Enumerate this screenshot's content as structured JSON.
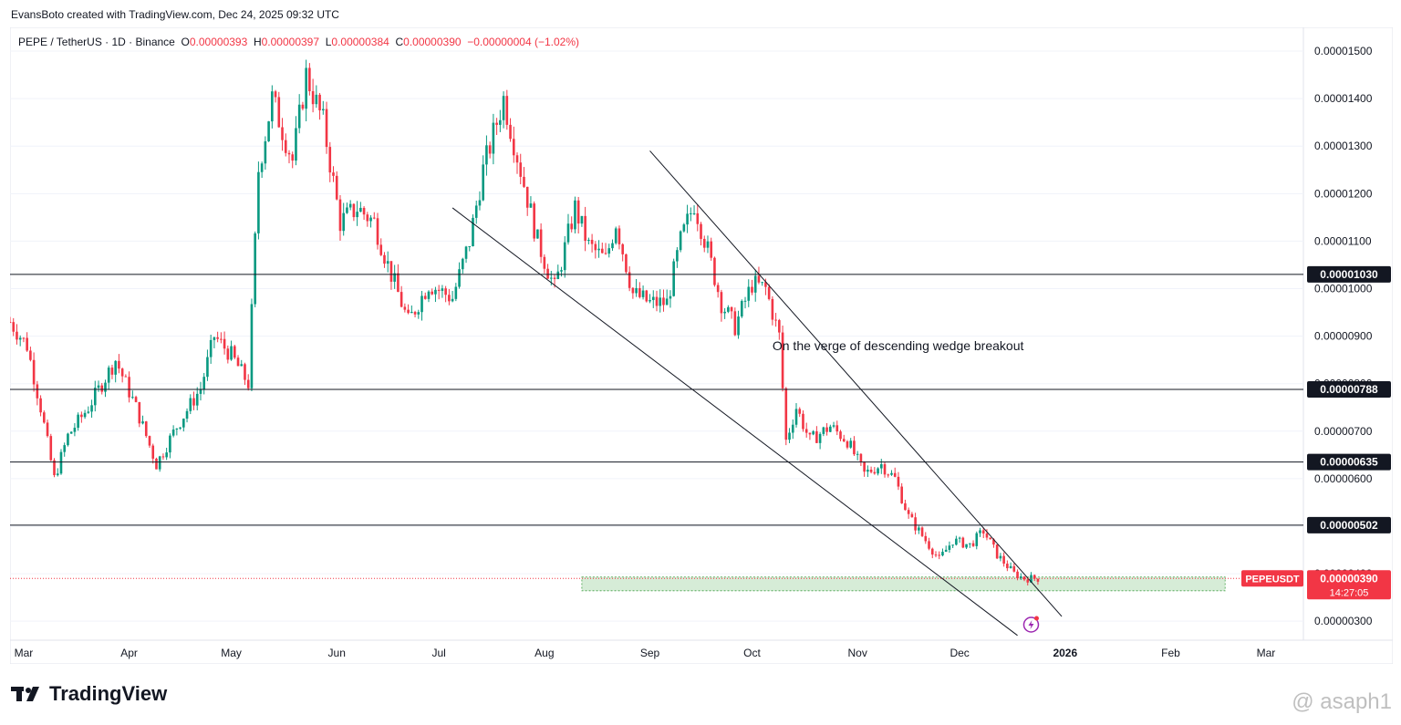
{
  "header": {
    "credit": "EvansBoto created with TradingView.com, Dec 24, 2025 09:32 UTC"
  },
  "legend": {
    "symbol": "PEPE / TetherUS · 1D · Binance",
    "o_label": "O",
    "o_value": "0.00000393",
    "h_label": "H",
    "h_value": "0.00000397",
    "l_label": "L",
    "l_value": "0.00000384",
    "c_label": "C",
    "c_value": "0.00000390",
    "change": "−0.00000004 (−1.02%)"
  },
  "footer": {
    "brand": "TradingView",
    "watermark": "@ asaph1"
  },
  "colors": {
    "up": "#089981",
    "down": "#f23645",
    "line": "#131722",
    "zone": "#c8e6c9"
  },
  "chart_data": {
    "type": "candlestick",
    "title": "",
    "x_axis": {
      "start": "2025-02-25",
      "end": "2026-03-12",
      "tick_labels": [
        {
          "date": "2025-03-01",
          "label": "Mar"
        },
        {
          "date": "2025-04-01",
          "label": "Apr"
        },
        {
          "date": "2025-05-01",
          "label": "May"
        },
        {
          "date": "2025-06-01",
          "label": "Jun"
        },
        {
          "date": "2025-07-01",
          "label": "Jul"
        },
        {
          "date": "2025-08-01",
          "label": "Aug"
        },
        {
          "date": "2025-09-01",
          "label": "Sep"
        },
        {
          "date": "2025-10-01",
          "label": "Oct"
        },
        {
          "date": "2025-11-01",
          "label": "Nov"
        },
        {
          "date": "2025-12-01",
          "label": "Dec"
        },
        {
          "date": "2026-01-01",
          "label": "2026"
        },
        {
          "date": "2026-02-01",
          "label": "Feb"
        },
        {
          "date": "2026-03-01",
          "label": "Mar"
        }
      ]
    },
    "y_axis": {
      "min": 2.6e-06,
      "max": 1.55e-05,
      "tick_values": [
        3e-06,
        4e-06,
        5e-06,
        6e-06,
        7e-06,
        8e-06,
        9e-06,
        1e-05,
        1.1e-05,
        1.2e-05,
        1.3e-05,
        1.4e-05,
        1.5e-05
      ],
      "tick_labels": [
        "0.00000300",
        "0.00000400",
        "0.00000500",
        "0.00000600",
        "0.00000700",
        "0.00000800",
        "0.00000900",
        "0.00001000",
        "0.00001100",
        "0.00001200",
        "0.00001300",
        "0.00001400",
        "0.00001500"
      ]
    },
    "price_path": [
      [
        "2025-02-25",
        9.3e-06
      ],
      [
        "2025-03-02",
        8.8e-06
      ],
      [
        "2025-03-06",
        7.5e-06
      ],
      [
        "2025-03-10",
        6e-06
      ],
      [
        "2025-03-14",
        6.9e-06
      ],
      [
        "2025-03-20",
        7.5e-06
      ],
      [
        "2025-03-28",
        8.5e-06
      ],
      [
        "2025-04-03",
        7.5e-06
      ],
      [
        "2025-04-09",
        6.3e-06
      ],
      [
        "2025-04-15",
        7.1e-06
      ],
      [
        "2025-04-22",
        7.9e-06
      ],
      [
        "2025-04-26",
        9e-06
      ],
      [
        "2025-05-01",
        8.6e-06
      ],
      [
        "2025-05-06",
        8e-06
      ],
      [
        "2025-05-09",
        1.25e-05
      ],
      [
        "2025-05-13",
        1.4e-05
      ],
      [
        "2025-05-19",
        1.27e-05
      ],
      [
        "2025-05-23",
        1.45e-05
      ],
      [
        "2025-05-28",
        1.35e-05
      ],
      [
        "2025-06-02",
        1.14e-05
      ],
      [
        "2025-06-07",
        1.17e-05
      ],
      [
        "2025-06-12",
        1.14e-05
      ],
      [
        "2025-06-16",
        1.05e-05
      ],
      [
        "2025-06-22",
        9.3e-06
      ],
      [
        "2025-06-28",
        1.01e-05
      ],
      [
        "2025-07-05",
        9.8e-06
      ],
      [
        "2025-07-10",
        1.1e-05
      ],
      [
        "2025-07-14",
        1.25e-05
      ],
      [
        "2025-07-20",
        1.4e-05
      ],
      [
        "2025-07-25",
        1.25e-05
      ],
      [
        "2025-07-30",
        1.1e-05
      ],
      [
        "2025-08-04",
        1e-05
      ],
      [
        "2025-08-10",
        1.17e-05
      ],
      [
        "2025-08-14",
        1.09e-05
      ],
      [
        "2025-08-19",
        1.06e-05
      ],
      [
        "2025-08-22",
        1.14e-05
      ],
      [
        "2025-08-27",
        9.9e-06
      ],
      [
        "2025-09-01",
        9.7e-06
      ],
      [
        "2025-09-06",
        9.7e-06
      ],
      [
        "2025-09-10",
        1.1e-05
      ],
      [
        "2025-09-14",
        1.18e-05
      ],
      [
        "2025-09-18",
        1.08e-05
      ],
      [
        "2025-09-22",
        9.7e-06
      ],
      [
        "2025-09-26",
        9.2e-06
      ],
      [
        "2025-10-01",
        1.01e-05
      ],
      [
        "2025-10-05",
        1e-05
      ],
      [
        "2025-10-09",
        9e-06
      ],
      [
        "2025-10-11",
        6.8e-06
      ],
      [
        "2025-10-14",
        7.5e-06
      ],
      [
        "2025-10-18",
        6.8e-06
      ],
      [
        "2025-10-24",
        7.1e-06
      ],
      [
        "2025-10-29",
        6.8e-06
      ],
      [
        "2025-11-03",
        6.1e-06
      ],
      [
        "2025-11-08",
        6.3e-06
      ],
      [
        "2025-11-12",
        6e-06
      ],
      [
        "2025-11-16",
        5.2e-06
      ],
      [
        "2025-11-21",
        4.7e-06
      ],
      [
        "2025-11-25",
        4.3e-06
      ],
      [
        "2025-11-29",
        4.7e-06
      ],
      [
        "2025-12-04",
        4.6e-06
      ],
      [
        "2025-12-08",
        4.9e-06
      ],
      [
        "2025-12-12",
        4.4e-06
      ],
      [
        "2025-12-17",
        4e-06
      ],
      [
        "2025-12-20",
        3.9e-06
      ],
      [
        "2025-12-24",
        3.9e-06
      ]
    ],
    "horizontal_levels": [
      {
        "value": 1.03e-05,
        "label": "0.00001030"
      },
      {
        "value": 7.88e-06,
        "label": "0.00000788"
      },
      {
        "value": 6.35e-06,
        "label": "0.00000635"
      },
      {
        "value": 5.02e-06,
        "label": "0.00000502"
      }
    ],
    "trendlines": [
      {
        "name": "upper",
        "start": [
          "2025-09-01",
          1.29e-05
        ],
        "end": [
          "2025-12-31",
          3.1e-06
        ]
      },
      {
        "name": "lower",
        "start": [
          "2025-07-05",
          1.17e-05
        ],
        "end": [
          "2025-12-18",
          2.7e-06
        ]
      }
    ],
    "support_zone": {
      "from_date": "2025-08-12",
      "to_date": "2026-02-17",
      "low": 3.64e-06,
      "high": 3.93e-06
    },
    "current_price": {
      "symbol": "PEPEUSDT",
      "value": "0.00000390",
      "countdown": "14:27:05",
      "numeric": 3.9e-06
    },
    "annotation": {
      "text": "On the verge of descending wedge breakout",
      "date": "2025-10-07",
      "value": 8.7e-06
    }
  }
}
